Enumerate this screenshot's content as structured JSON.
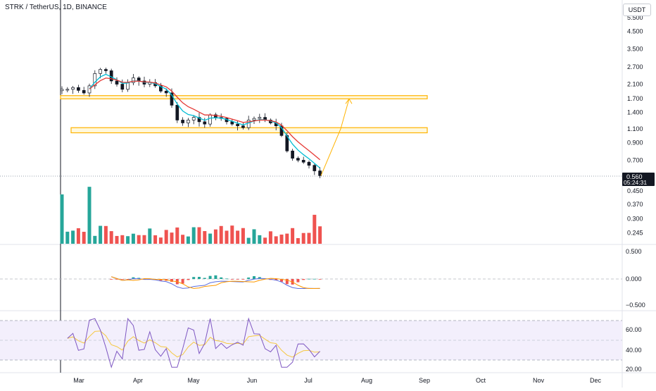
{
  "header": {
    "title": "STRK / TetherUS, 1D, BINANCE",
    "currency": "USDT"
  },
  "price_axis": {
    "ticks": [
      {
        "label": "5.500",
        "value": 5.5
      },
      {
        "label": "4.500",
        "value": 4.5
      },
      {
        "label": "3.500",
        "value": 3.5
      },
      {
        "label": "2.700",
        "value": 2.7
      },
      {
        "label": "2.100",
        "value": 2.1
      },
      {
        "label": "1.700",
        "value": 1.7
      },
      {
        "label": "1.400",
        "value": 1.4
      },
      {
        "label": "1.100",
        "value": 1.1
      },
      {
        "label": "0.900",
        "value": 0.9
      },
      {
        "label": "0.700",
        "value": 0.7
      },
      {
        "label": "0.450",
        "value": 0.45
      },
      {
        "label": "0.370",
        "value": 0.37
      },
      {
        "label": "0.300",
        "value": 0.3
      },
      {
        "label": "0.245",
        "value": 0.245
      }
    ],
    "current_price": "0.560",
    "countdown": "05:24:31"
  },
  "macd_axis": {
    "ticks": [
      "0.500",
      "0.000",
      "−0.500"
    ]
  },
  "rsi_axis": {
    "ticks": [
      "60.00",
      "40.00",
      "20.00"
    ]
  },
  "time_axis": {
    "labels": [
      "Mar",
      "Apr",
      "May",
      "Jun",
      "Jul",
      "Aug",
      "Sep",
      "Oct",
      "Nov",
      "Dec"
    ]
  },
  "colors": {
    "up": "#26a69a",
    "down": "#ef5350",
    "ema_fast": "#00bcd4",
    "ema_slow": "#e53935",
    "zone": "#ffb300",
    "zone_fill": "#fff3c4",
    "macd": "#5b6ee1",
    "signal": "#ff9800",
    "rsi": "#7e57c2",
    "rsi_ma": "#f5c842",
    "rsi_band": "#f3effc"
  },
  "icons": [
    "current-price-marker",
    "projection-arrow-icon"
  ],
  "chart_data": {
    "type": "line",
    "title": "STRK / TetherUS, 1D, BINANCE",
    "yscale": "log",
    "ylim": [
      0.23,
      6.0
    ],
    "x": [
      "Mar",
      "Apr",
      "May",
      "Jun",
      "Jul"
    ],
    "close_path": [
      1.95,
      1.95,
      2.0,
      1.92,
      1.85,
      2.05,
      2.45,
      2.6,
      2.55,
      2.2,
      2.1,
      1.95,
      2.15,
      2.3,
      2.2,
      2.1,
      2.15,
      2.05,
      1.9,
      1.85,
      1.55,
      1.25,
      1.2,
      1.25,
      1.3,
      1.22,
      1.18,
      1.35,
      1.3,
      1.28,
      1.22,
      1.18,
      1.15,
      1.12,
      1.25,
      1.28,
      1.3,
      1.25,
      1.2,
      1.15,
      1.0,
      0.8,
      0.72,
      0.7,
      0.68,
      0.65,
      0.6,
      0.56
    ],
    "projection": [
      0.56,
      1.1,
      1.7
    ],
    "zones": [
      {
        "low": 1.7,
        "high": 1.78
      },
      {
        "low": 1.04,
        "high": 1.12
      }
    ],
    "indicators": [
      "EMA",
      "MACD",
      "RSI"
    ],
    "rsi_levels": [
      70,
      50,
      30
    ]
  }
}
